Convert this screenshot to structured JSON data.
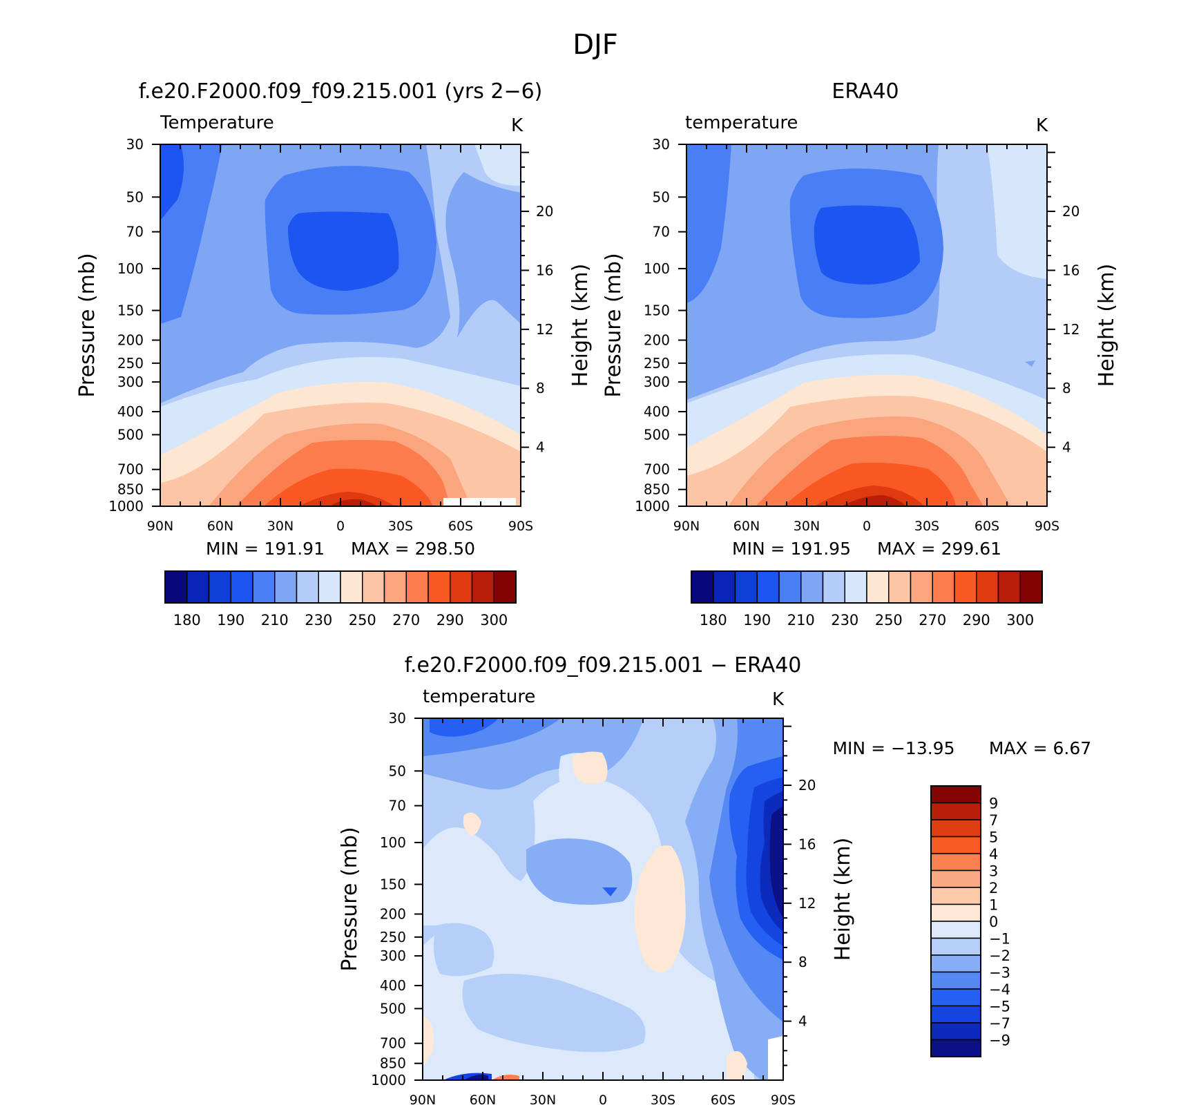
{
  "figure": {
    "title": "DJF"
  },
  "colors": {
    "temp_palette": [
      "#08087a",
      "#0a24b8",
      "#0d3fd9",
      "#1d55f0",
      "#4a7ef5",
      "#7fa5f5",
      "#b3ccf8",
      "#d6e6fb",
      "#fde6d2",
      "#fcc6a6",
      "#fba57e",
      "#fb7c4c",
      "#f95823",
      "#e03a10",
      "#b81e0a",
      "#830303"
    ],
    "diff_palette": [
      "#0b1287",
      "#0d2bbb",
      "#1545e0",
      "#2660f2",
      "#5588f3",
      "#87aef4",
      "#b6cff8",
      "#dbe9fb",
      "#fde7d5",
      "#fccaa9",
      "#fba982",
      "#fb804f",
      "#f85a24",
      "#df3d12",
      "#b81f0a",
      "#850404"
    ]
  },
  "chart_data": [
    {
      "type": "heatmap",
      "title": "f.e20.F2000.f09_f09.215.001 (yrs 2−6)",
      "variable": "Temperature",
      "units": "K",
      "ylabel": "Pressure (mb)",
      "ylabel_right": "Height (km)",
      "x_ticks": [
        "90N",
        "60N",
        "30N",
        "0",
        "30S",
        "60S",
        "90S"
      ],
      "y_ticks": [
        "30",
        "50",
        "70",
        "100",
        "150",
        "200",
        "250",
        "300",
        "400",
        "500",
        "700",
        "850",
        "1000"
      ],
      "y_ticks_right": [
        "20",
        "16",
        "12",
        "8",
        "4"
      ],
      "min_label": "MIN = 191.91",
      "max_label": "MAX = 298.50",
      "min": 191.91,
      "max": 298.5,
      "colorbar_labels": [
        "180",
        "190",
        "210",
        "230",
        "250",
        "270",
        "290",
        "300"
      ],
      "levels": [
        180,
        185,
        190,
        200,
        210,
        220,
        230,
        240,
        250,
        260,
        270,
        280,
        290,
        295,
        300
      ]
    },
    {
      "type": "heatmap",
      "title": "ERA40",
      "variable": "temperature",
      "units": "K",
      "ylabel": "Pressure (mb)",
      "ylabel_right": "Height (km)",
      "x_ticks": [
        "90N",
        "60N",
        "30N",
        "0",
        "30S",
        "60S",
        "90S"
      ],
      "y_ticks": [
        "30",
        "50",
        "70",
        "100",
        "150",
        "200",
        "250",
        "300",
        "400",
        "500",
        "700",
        "850",
        "1000"
      ],
      "y_ticks_right": [
        "20",
        "16",
        "12",
        "8",
        "4"
      ],
      "min_label": "MIN = 191.95",
      "max_label": "MAX = 299.61",
      "min": 191.95,
      "max": 299.61,
      "colorbar_labels": [
        "180",
        "190",
        "210",
        "230",
        "250",
        "270",
        "290",
        "300"
      ],
      "levels": [
        180,
        185,
        190,
        200,
        210,
        220,
        230,
        240,
        250,
        260,
        270,
        280,
        290,
        295,
        300
      ]
    },
    {
      "type": "heatmap",
      "title": "f.e20.F2000.f09_f09.215.001 − ERA40",
      "variable": "temperature",
      "units": "K",
      "ylabel": "Pressure (mb)",
      "ylabel_right": "Height (km)",
      "x_ticks": [
        "90N",
        "60N",
        "30N",
        "0",
        "30S",
        "60S",
        "90S"
      ],
      "y_ticks": [
        "30",
        "50",
        "70",
        "100",
        "150",
        "200",
        "250",
        "300",
        "400",
        "500",
        "700",
        "850",
        "1000"
      ],
      "y_ticks_right": [
        "20",
        "16",
        "12",
        "8",
        "4"
      ],
      "min_label": "MIN = −13.95",
      "max_label": "MAX = 6.67",
      "min": -13.95,
      "max": 6.67,
      "colorbar_labels": [
        "9",
        "7",
        "5",
        "4",
        "3",
        "2",
        "1",
        "0",
        "−1",
        "−2",
        "−3",
        "−4",
        "−5",
        "−7",
        "−9"
      ]
    }
  ]
}
